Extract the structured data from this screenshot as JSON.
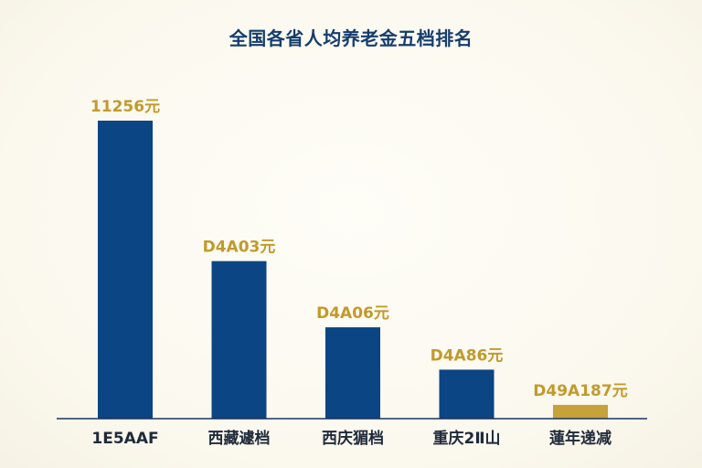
{
  "chart_data": {
    "type": "bar",
    "title": "全国各省人均养老金五档排名",
    "categories": [
      "1E5AAF",
      "西藏遽档",
      "西庆猸档",
      "重庆2Ⅱ山",
      "蓮年递减"
    ],
    "values": [
      11256,
      5950,
      3450,
      1850,
      520
    ],
    "value_labels": [
      "11256元",
      "D4A03元",
      "D4A06元",
      "D4A86元",
      "D49A187元"
    ],
    "ylim": [
      0,
      12000
    ],
    "grid": false,
    "colors": {
      "bar_primary": "#0b4583",
      "bar_last": "#c7a13a",
      "value_label": "#c29a2c",
      "title": "#143d6e",
      "axis": "#1a3560"
    }
  }
}
